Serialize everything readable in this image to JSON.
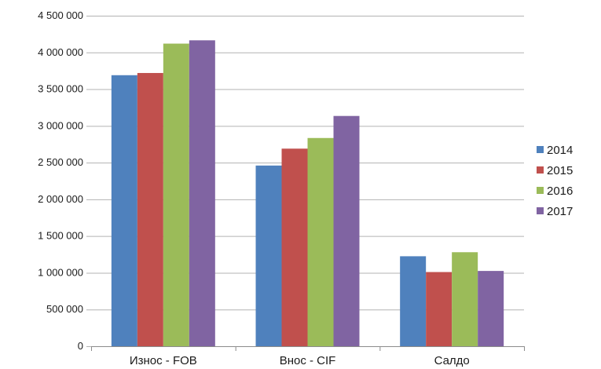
{
  "chart_data": {
    "type": "bar",
    "title": "",
    "xlabel": "",
    "ylabel": "",
    "categories": [
      "Износ - FOB",
      "Внос - CIF",
      "Салдо"
    ],
    "ylim": [
      0,
      4500000
    ],
    "y_ticks": [
      0,
      500000,
      1000000,
      1500000,
      2000000,
      2500000,
      3000000,
      3500000,
      4000000,
      4500000
    ],
    "y_tick_labels": [
      "0",
      "500 000",
      "1 000 000",
      "1 500 000",
      "2 000 000",
      "2 500 000",
      "3 000 000",
      "3 500 000",
      "4 000 000",
      "4 500 000"
    ],
    "grid": true,
    "legend_position": "right",
    "series": [
      {
        "name": "2014",
        "color": "#4f81bd",
        "values": [
          3690000,
          2460000,
          1225000
        ]
      },
      {
        "name": "2015",
        "color": "#c0504d",
        "values": [
          3720000,
          2690000,
          1010000
        ]
      },
      {
        "name": "2016",
        "color": "#9bbb59",
        "values": [
          4120000,
          2835000,
          1280000
        ]
      },
      {
        "name": "2017",
        "color": "#8064a2",
        "values": [
          4165000,
          3135000,
          1025000
        ]
      }
    ]
  }
}
